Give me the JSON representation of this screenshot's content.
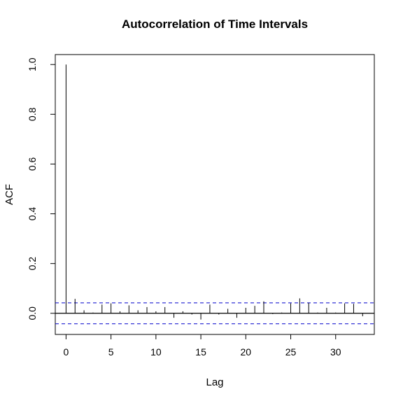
{
  "chart_data": {
    "type": "bar",
    "title": "Autocorrelation of Time Intervals",
    "xlabel": "Lag",
    "ylabel": "ACF",
    "xlim": [
      -1.2,
      34.3
    ],
    "ylim": [
      -0.085,
      1.04
    ],
    "x_ticks": [
      0,
      5,
      10,
      15,
      20,
      25,
      30
    ],
    "y_ticks": [
      "0.0",
      "0.2",
      "0.4",
      "0.6",
      "0.8",
      "1.0"
    ],
    "y_tick_values": [
      0.0,
      0.2,
      0.4,
      0.6,
      0.8,
      1.0
    ],
    "confidence_bound": 0.042,
    "lags": [
      0,
      1,
      2,
      3,
      4,
      5,
      6,
      7,
      8,
      9,
      10,
      11,
      12,
      13,
      14,
      15,
      16,
      17,
      18,
      19,
      20,
      21,
      22,
      23,
      24,
      25,
      26,
      27,
      28,
      29,
      30,
      31,
      32,
      33
    ],
    "values": [
      1.0,
      0.058,
      0.012,
      0.003,
      0.035,
      0.04,
      0.008,
      0.032,
      0.012,
      0.025,
      0.008,
      0.025,
      -0.018,
      0.008,
      -0.005,
      -0.025,
      0.035,
      -0.005,
      0.018,
      -0.018,
      0.022,
      0.03,
      0.048,
      -0.003,
      0.003,
      0.04,
      0.06,
      0.042,
      0.003,
      0.022,
      0.003,
      0.04,
      0.038,
      -0.012
    ],
    "colors": {
      "bars": "#000000",
      "confidence": "#0000cc",
      "zero_line": "#000000"
    },
    "grid": false
  }
}
